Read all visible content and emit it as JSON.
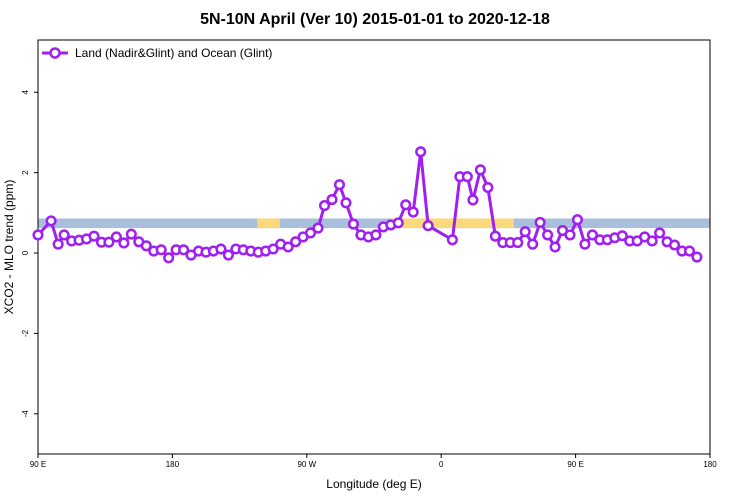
{
  "chart_data": {
    "type": "line",
    "title": "5N-10N April (Ver 10)   2015-01-01 to 2020-12-18",
    "xlabel": "Longitude (deg E)",
    "ylabel": "XCO2 - MLO trend (ppm)",
    "xlim": [
      90,
      450
    ],
    "ylim": [
      -5,
      5.3
    ],
    "x_ticks": [
      {
        "value": 90,
        "label": "90 E"
      },
      {
        "value": 162,
        "label": "180"
      },
      {
        "value": 234,
        "label": "90 W"
      },
      {
        "value": 306,
        "label": "0"
      },
      {
        "value": 378,
        "label": "90 E"
      },
      {
        "value": 450,
        "label": "180"
      }
    ],
    "y_ticks": [
      {
        "value": -4,
        "label": "-4"
      },
      {
        "value": -2,
        "label": "-2"
      },
      {
        "value": 0,
        "label": "0"
      },
      {
        "value": 2,
        "label": "2"
      },
      {
        "value": 4,
        "label": "4"
      }
    ],
    "grid": false,
    "legend_position": "top-left",
    "land_band": {
      "y_range": [
        0.62,
        0.86
      ],
      "ocean_color": "#a9bfdc",
      "land_color": "#fbd97a",
      "land_segments": [
        [
          207.5,
          219.5
        ],
        [
          279,
          345
        ]
      ]
    },
    "series": [
      {
        "name": "Land (Nadir&Glint) and Ocean (Glint)",
        "color": "#a020f0",
        "points": [
          [
            90,
            0.45
          ],
          [
            97,
            0.8
          ],
          [
            100.8,
            0.22
          ],
          [
            104,
            0.45
          ],
          [
            108,
            0.3
          ],
          [
            112,
            0.32
          ],
          [
            116,
            0.35
          ],
          [
            120,
            0.42
          ],
          [
            124,
            0.27
          ],
          [
            128,
            0.27
          ],
          [
            132,
            0.4
          ],
          [
            136,
            0.25
          ],
          [
            140,
            0.47
          ],
          [
            144,
            0.28
          ],
          [
            148,
            0.18
          ],
          [
            152,
            0.05
          ],
          [
            156,
            0.08
          ],
          [
            160,
            -0.12
          ],
          [
            164,
            0.08
          ],
          [
            168,
            0.08
          ],
          [
            172,
            -0.05
          ],
          [
            176,
            0.05
          ],
          [
            180,
            0.02
          ],
          [
            184,
            0.05
          ],
          [
            188,
            0.1
          ],
          [
            192,
            -0.05
          ],
          [
            196,
            0.1
          ],
          [
            200,
            0.08
          ],
          [
            204,
            0.05
          ],
          [
            208,
            0.02
          ],
          [
            212,
            0.05
          ],
          [
            216,
            0.1
          ],
          [
            220,
            0.22
          ],
          [
            224,
            0.15
          ],
          [
            228,
            0.28
          ],
          [
            232,
            0.4
          ],
          [
            236,
            0.5
          ],
          [
            240,
            0.62
          ],
          [
            243.5,
            1.18
          ],
          [
            247.5,
            1.33
          ],
          [
            251.5,
            1.7
          ],
          [
            255,
            1.25
          ],
          [
            259,
            0.72
          ],
          [
            263,
            0.45
          ],
          [
            267,
            0.4
          ],
          [
            271,
            0.45
          ],
          [
            275,
            0.65
          ],
          [
            279,
            0.7
          ],
          [
            283,
            0.75
          ],
          [
            287,
            1.2
          ],
          [
            291,
            1.02
          ],
          [
            295,
            2.52
          ],
          [
            299,
            0.68
          ],
          [
            312,
            0.33
          ],
          [
            316,
            1.9
          ],
          [
            320,
            1.9
          ],
          [
            323,
            1.32
          ],
          [
            327,
            2.07
          ],
          [
            331,
            1.63
          ],
          [
            335,
            0.42
          ],
          [
            339,
            0.26
          ],
          [
            343,
            0.26
          ],
          [
            347,
            0.26
          ],
          [
            351,
            0.53
          ],
          [
            355,
            0.22
          ],
          [
            359,
            0.76
          ],
          [
            363,
            0.45
          ],
          [
            367,
            0.15
          ],
          [
            371,
            0.56
          ],
          [
            375,
            0.45
          ],
          [
            379,
            0.83
          ],
          [
            383,
            0.22
          ],
          [
            387,
            0.45
          ],
          [
            391,
            0.33
          ],
          [
            395,
            0.33
          ],
          [
            399,
            0.38
          ],
          [
            403,
            0.43
          ],
          [
            407,
            0.3
          ],
          [
            411,
            0.3
          ],
          [
            415,
            0.4
          ],
          [
            419,
            0.3
          ],
          [
            423,
            0.5
          ],
          [
            427,
            0.28
          ],
          [
            431,
            0.2
          ],
          [
            435,
            0.05
          ],
          [
            439,
            0.05
          ],
          [
            443,
            -0.1
          ]
        ]
      }
    ]
  }
}
